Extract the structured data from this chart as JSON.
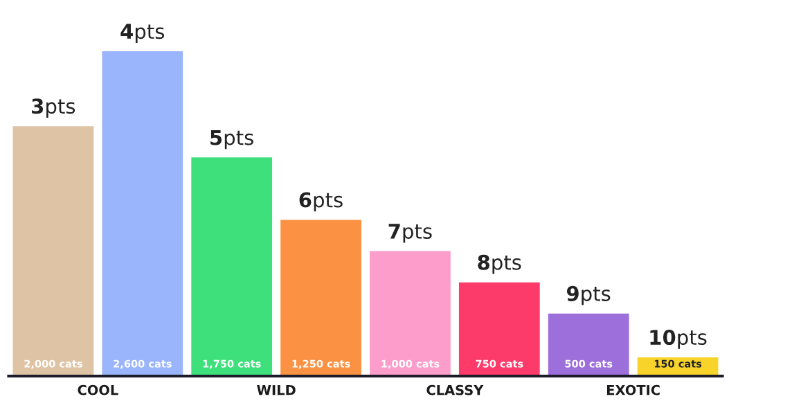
{
  "chart_data": {
    "type": "bar",
    "categories": [
      "COOL",
      "WILD",
      "CLASSY",
      "EXOTIC"
    ],
    "series": [
      {
        "colors": [
          "#dfc3a5",
          "#3ee07c",
          "#fd9dcb",
          "#9d6fdb"
        ],
        "values": [
          2000,
          1750,
          1000,
          500
        ],
        "value_labels": [
          "2,000 cats",
          "1,750 cats",
          "1,000 cats",
          "500 cats"
        ]
      },
      {
        "colors": [
          "#9bb5fc",
          "#fb9243",
          "#fd3b6b",
          "#f8d42a"
        ],
        "values": [
          2600,
          1250,
          750,
          150
        ],
        "value_labels": [
          "2,600 cats",
          "1,250 cats",
          "750 cats",
          "150 cats"
        ]
      }
    ],
    "annotations": [
      "3pts",
      "4pts",
      "5pts",
      "6pts",
      "7pts",
      "8pts",
      "9pts",
      "10pts"
    ],
    "tick_labels": "x"
  }
}
